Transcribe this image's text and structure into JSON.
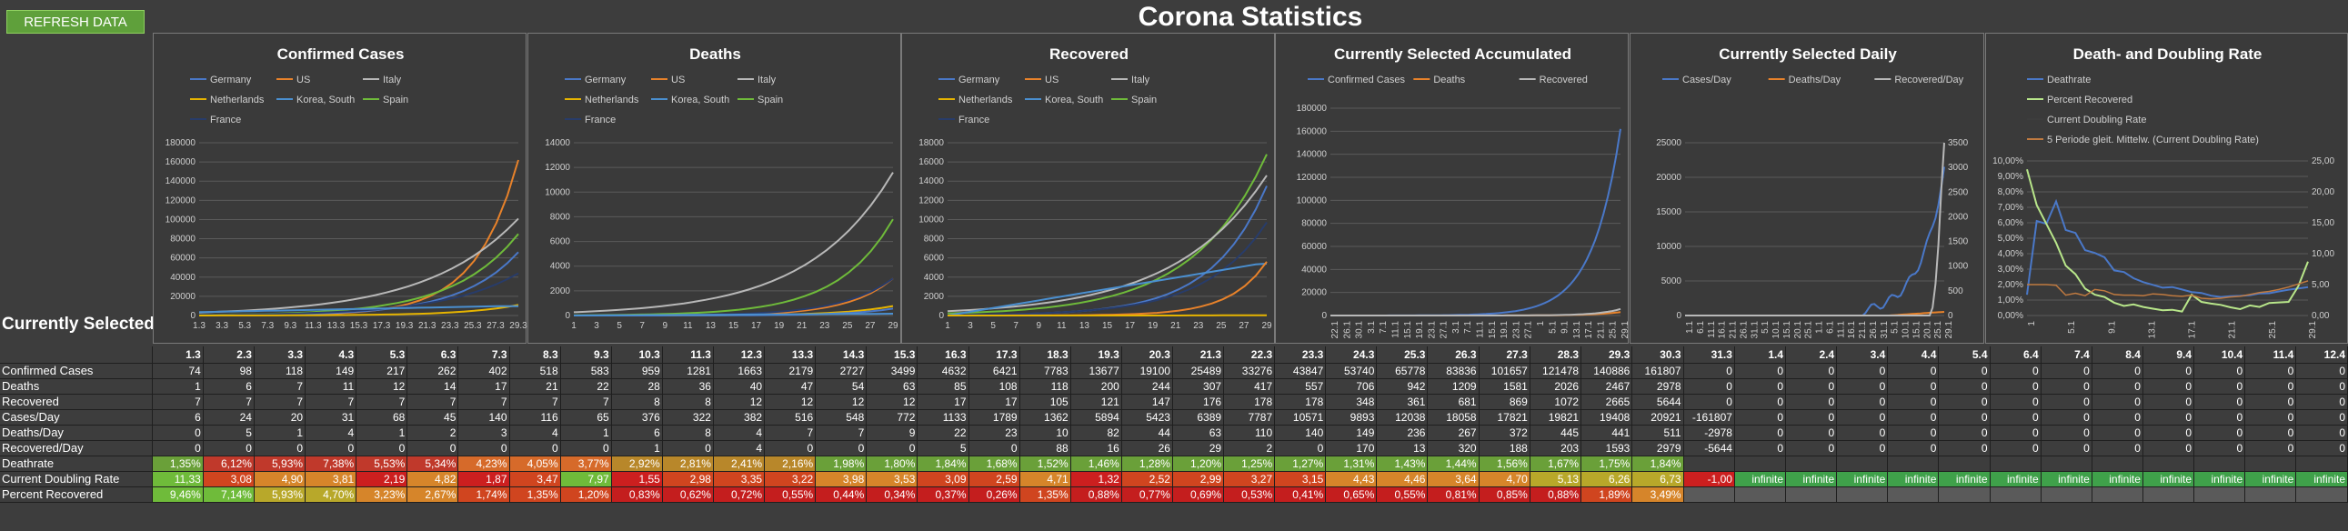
{
  "refresh_label": "REFRESH DATA",
  "title": "Corona Statistics",
  "selected_label": "Currently Selected",
  "selected_country": "US",
  "colors": {
    "Germany": "#4a78c8",
    "US": "#e8822a",
    "Italy": "#b8b8b8",
    "Netherlands": "#e6b400",
    "Korea, South": "#4a8fd0",
    "Spain": "#6fbb3a",
    "France": "#283c6a",
    "deathrate": "#4a78c8",
    "percent_recovered": "#b8e68a",
    "doubling": "#c07a40"
  },
  "charts": [
    {
      "title": "Confirmed Cases",
      "legend": [
        "Germany",
        "US",
        "Italy",
        "Netherlands",
        "Korea, South",
        "Spain",
        "France"
      ],
      "yticks": [
        "0",
        "20000",
        "40000",
        "60000",
        "80000",
        "100000",
        "120000",
        "140000",
        "160000",
        "180000"
      ],
      "xticks": [
        "1.3",
        "3.3",
        "5.3",
        "7.3",
        "9.3",
        "11.3",
        "13.3",
        "15.3",
        "17.3",
        "19.3",
        "21.3",
        "23.3",
        "25.3",
        "27.3",
        "29.3"
      ]
    },
    {
      "title": "Deaths",
      "legend": [
        "Germany",
        "US",
        "Italy",
        "Netherlands",
        "Korea, South",
        "Spain",
        "France"
      ],
      "yticks": [
        "0",
        "2000",
        "4000",
        "6000",
        "8000",
        "10000",
        "12000",
        "14000"
      ],
      "xticks": [
        "1",
        "3",
        "5",
        "7",
        "9",
        "11",
        "13",
        "15",
        "17",
        "19",
        "21",
        "23",
        "25",
        "27",
        "29"
      ]
    },
    {
      "title": "Recovered",
      "legend": [
        "Germany",
        "US",
        "Italy",
        "Netherlands",
        "Korea, South",
        "Spain",
        "France"
      ],
      "yticks": [
        "0",
        "2000",
        "4000",
        "6000",
        "8000",
        "10000",
        "12000",
        "14000",
        "16000",
        "18000"
      ],
      "xticks": [
        "1",
        "3",
        "5",
        "7",
        "9",
        "11",
        "13",
        "15",
        "17",
        "19",
        "21",
        "23",
        "25",
        "27",
        "29"
      ]
    },
    {
      "title": "Currently Selected Accumulated",
      "legend": [
        "Confirmed Cases",
        "Deaths",
        "Recovered"
      ],
      "yticks": [
        "0",
        "20000",
        "40000",
        "60000",
        "80000",
        "100000",
        "120000",
        "140000",
        "160000",
        "180000"
      ],
      "xticks": [
        "22.1",
        "26.1",
        "30.1",
        "3.1",
        "7.1",
        "11.1",
        "15.1",
        "19.1",
        "23.1",
        "27.1",
        "3.1",
        "7.1",
        "11.1",
        "15.1",
        "19.1",
        "23.1",
        "27.1",
        "1",
        "5.1",
        "9.1",
        "13.1",
        "17.1",
        "21.1",
        "25.1",
        "29.1"
      ]
    },
    {
      "title": "Currently Selected Daily",
      "legend": [
        "Cases/Day",
        "Deaths/Day",
        "Recovered/Day"
      ],
      "yticks": [
        "0",
        "5000",
        "10000",
        "15000",
        "20000",
        "25000"
      ],
      "y2ticks": [
        "0",
        "500",
        "1000",
        "1500",
        "2000",
        "2500",
        "3000",
        "3500"
      ],
      "xticks": [
        "1.1",
        "6.1",
        "11.1",
        "16.1",
        "21.1",
        "26.1",
        "31.1",
        "5.1",
        "10.1",
        "15.1",
        "20.1",
        "25.1",
        "1.1",
        "6.1",
        "11.1",
        "16.1",
        "21.1",
        "26.1",
        "31.1",
        "5.1",
        "10.1",
        "15.1",
        "20.1",
        "25.1",
        "29.1"
      ]
    },
    {
      "title": "Death- and Doubling Rate",
      "legend": [
        "Deathrate",
        "Percent Recovered",
        "Current Doubling Rate",
        "5 Periode gleit. Mittelw. (Current Doubling Rate)"
      ],
      "yticks": [
        "0,00%",
        "1,00%",
        "2,00%",
        "3,00%",
        "4,00%",
        "5,00%",
        "6,00%",
        "7,00%",
        "8,00%",
        "9,00%",
        "10,00%"
      ],
      "y2ticks": [
        "0,00",
        "5,00",
        "10,00",
        "15,00",
        "20,00",
        "25,00"
      ],
      "xticks": [
        "1",
        "5.1",
        "9.1",
        "13.1",
        "17.1",
        "21.1",
        "25.1",
        "29.1"
      ]
    }
  ],
  "table": {
    "dates": [
      "1.3",
      "2.3",
      "3.3",
      "4.3",
      "5.3",
      "6.3",
      "7.3",
      "8.3",
      "9.3",
      "10.3",
      "11.3",
      "12.3",
      "13.3",
      "14.3",
      "15.3",
      "16.3",
      "17.3",
      "18.3",
      "19.3",
      "20.3",
      "21.3",
      "22.3",
      "23.3",
      "24.3",
      "25.3",
      "26.3",
      "27.3",
      "28.3",
      "29.3",
      "30.3",
      "31.3",
      "1.4",
      "2.4",
      "3.4",
      "4.4",
      "5.4",
      "6.4",
      "7.4",
      "8.4",
      "9.4",
      "10.4",
      "11.4",
      "12.4"
    ],
    "rows": [
      {
        "label": "Confirmed Cases",
        "values": [
          "74",
          "98",
          "118",
          "149",
          "217",
          "262",
          "402",
          "518",
          "583",
          "959",
          "1281",
          "1663",
          "2179",
          "2727",
          "3499",
          "4632",
          "6421",
          "7783",
          "13677",
          "19100",
          "25489",
          "33276",
          "43847",
          "53740",
          "65778",
          "83836",
          "101657",
          "121478",
          "140886",
          "161807",
          "0",
          "0",
          "0",
          "0",
          "0",
          "0",
          "0",
          "0",
          "0",
          "0",
          "0",
          "0",
          "0"
        ]
      },
      {
        "label": "Deaths",
        "values": [
          "1",
          "6",
          "7",
          "11",
          "12",
          "14",
          "17",
          "21",
          "22",
          "28",
          "36",
          "40",
          "47",
          "54",
          "63",
          "85",
          "108",
          "118",
          "200",
          "244",
          "307",
          "417",
          "557",
          "706",
          "942",
          "1209",
          "1581",
          "2026",
          "2467",
          "2978",
          "0",
          "0",
          "0",
          "0",
          "0",
          "0",
          "0",
          "0",
          "0",
          "0",
          "0",
          "0",
          "0"
        ]
      },
      {
        "label": "Recovered",
        "values": [
          "7",
          "7",
          "7",
          "7",
          "7",
          "7",
          "7",
          "7",
          "7",
          "8",
          "8",
          "12",
          "12",
          "12",
          "12",
          "17",
          "17",
          "105",
          "121",
          "147",
          "176",
          "178",
          "178",
          "348",
          "361",
          "681",
          "869",
          "1072",
          "2665",
          "5644",
          "0",
          "0",
          "0",
          "0",
          "0",
          "0",
          "0",
          "0",
          "0",
          "0",
          "0",
          "0",
          "0"
        ]
      },
      {
        "label": "Cases/Day",
        "values": [
          "6",
          "24",
          "20",
          "31",
          "68",
          "45",
          "140",
          "116",
          "65",
          "376",
          "322",
          "382",
          "516",
          "548",
          "772",
          "1133",
          "1789",
          "1362",
          "5894",
          "5423",
          "6389",
          "7787",
          "10571",
          "9893",
          "12038",
          "18058",
          "17821",
          "19821",
          "19408",
          "20921",
          "-161807",
          "0",
          "0",
          "0",
          "0",
          "0",
          "0",
          "0",
          "0",
          "0",
          "0",
          "0",
          "0"
        ]
      },
      {
        "label": "Deaths/Day",
        "values": [
          "0",
          "5",
          "1",
          "4",
          "1",
          "2",
          "3",
          "4",
          "1",
          "6",
          "8",
          "4",
          "7",
          "7",
          "9",
          "22",
          "23",
          "10",
          "82",
          "44",
          "63",
          "110",
          "140",
          "149",
          "236",
          "267",
          "372",
          "445",
          "441",
          "511",
          "-2978",
          "0",
          "0",
          "0",
          "0",
          "0",
          "0",
          "0",
          "0",
          "0",
          "0",
          "0",
          "0"
        ]
      },
      {
        "label": "Recovered/Day",
        "values": [
          "0",
          "0",
          "0",
          "0",
          "0",
          "0",
          "0",
          "0",
          "0",
          "1",
          "0",
          "4",
          "0",
          "0",
          "0",
          "5",
          "0",
          "88",
          "16",
          "26",
          "29",
          "2",
          "0",
          "170",
          "13",
          "320",
          "188",
          "203",
          "1593",
          "2979",
          "-5644",
          "0",
          "0",
          "0",
          "0",
          "0",
          "0",
          "0",
          "0",
          "0",
          "0",
          "0",
          "0"
        ]
      },
      {
        "label": "Deathrate",
        "values": [
          "1,35%",
          "6,12%",
          "5,93%",
          "7,38%",
          "5,53%",
          "5,34%",
          "4,23%",
          "4,05%",
          "3,77%",
          "2,92%",
          "2,81%",
          "2,41%",
          "2,16%",
          "1,98%",
          "1,80%",
          "1,84%",
          "1,68%",
          "1,52%",
          "1,46%",
          "1,28%",
          "1,20%",
          "1,25%",
          "1,27%",
          "1,31%",
          "1,43%",
          "1,44%",
          "1,56%",
          "1,67%",
          "1,75%",
          "1,84%",
          "",
          "",
          "",
          "",
          "",
          "",
          "",
          "",
          "",
          "",
          "",
          "",
          ""
        ]
      },
      {
        "label": "Current Doubling Rate",
        "values": [
          "11,33",
          "3,08",
          "4,90",
          "3,81",
          "2,19",
          "4,82",
          "1,87",
          "3,47",
          "7,97",
          "1,55",
          "2,98",
          "3,35",
          "3,22",
          "3,98",
          "3,53",
          "3,09",
          "2,59",
          "4,71",
          "1,32",
          "2,52",
          "2,99",
          "3,27",
          "3,15",
          "4,43",
          "4,46",
          "3,64",
          "4,70",
          "5,13",
          "6,26",
          "6,73",
          "-1,00",
          "infinite",
          "infinite",
          "infinite",
          "infinite",
          "infinite",
          "infinite",
          "infinite",
          "infinite",
          "infinite",
          "infinite",
          "infinite",
          "infinite"
        ]
      },
      {
        "label": "Percent Recovered",
        "values": [
          "9,46%",
          "7,14%",
          "5,93%",
          "4,70%",
          "3,23%",
          "2,67%",
          "1,74%",
          "1,35%",
          "1,20%",
          "0,83%",
          "0,62%",
          "0,72%",
          "0,55%",
          "0,44%",
          "0,34%",
          "0,37%",
          "0,26%",
          "1,35%",
          "0,88%",
          "0,77%",
          "0,69%",
          "0,53%",
          "0,41%",
          "0,65%",
          "0,55%",
          "0,81%",
          "0,85%",
          "0,88%",
          "1,89%",
          "3,49%",
          "",
          "",
          "",
          "",
          "",
          "",
          "",
          "",
          "",
          "",
          "",
          "",
          ""
        ]
      }
    ]
  }
}
